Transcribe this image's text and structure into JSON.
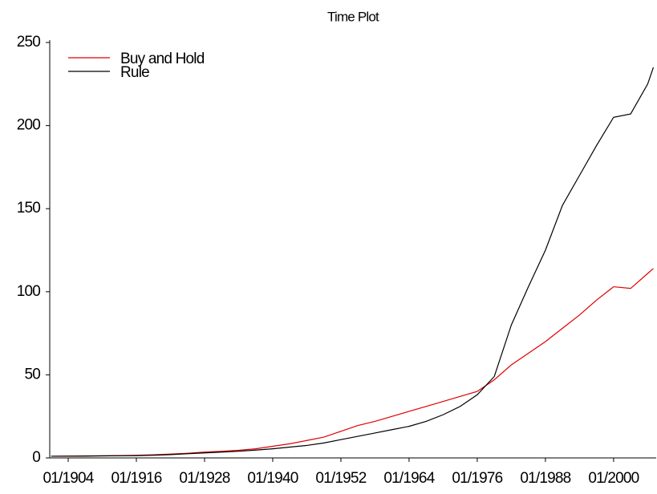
{
  "chart_data": {
    "type": "line",
    "title": "Time Plot",
    "x": [
      1901,
      1904,
      1907,
      1910,
      1913,
      1916,
      1919,
      1922,
      1925,
      1928,
      1931,
      1934,
      1937,
      1940,
      1943,
      1946,
      1949,
      1952,
      1955,
      1958,
      1961,
      1964,
      1967,
      1970,
      1973,
      1976,
      1979,
      1982,
      1985,
      1988,
      1991,
      1994,
      1997,
      2000,
      2003,
      2006,
      2007
    ],
    "series": [
      {
        "name": "Buy and Hold",
        "color": "#e00000",
        "values": [
          1,
          1.1,
          1.2,
          1.3,
          1.4,
          1.6,
          1.9,
          2.3,
          2.8,
          3.5,
          4,
          4.6,
          5.5,
          7,
          8.5,
          10.5,
          12.5,
          16,
          19.5,
          22,
          25,
          28,
          31,
          34,
          37,
          40,
          47,
          56,
          63,
          70,
          78,
          86,
          95,
          103,
          102,
          111,
          114
        ]
      },
      {
        "name": "Rule",
        "color": "#000000",
        "values": [
          1,
          1.05,
          1.1,
          1.2,
          1.3,
          1.4,
          1.6,
          2,
          2.5,
          3,
          3.5,
          4,
          4.7,
          5.5,
          6.5,
          7.5,
          9,
          11,
          13,
          15,
          17,
          19,
          22,
          26,
          31,
          38,
          49,
          80,
          103,
          125,
          152,
          170,
          188,
          205,
          207,
          225,
          235
        ]
      }
    ],
    "xlim": [
      1900.75,
      2007.5
    ],
    "xticks": [
      {
        "value": 1904,
        "label": "01/1904"
      },
      {
        "value": 1916,
        "label": "01/1916"
      },
      {
        "value": 1928,
        "label": "01/1928"
      },
      {
        "value": 1940,
        "label": "01/1940"
      },
      {
        "value": 1952,
        "label": "01/1952"
      },
      {
        "value": 1964,
        "label": "01/1964"
      },
      {
        "value": 1976,
        "label": "01/1976"
      },
      {
        "value": 1988,
        "label": "01/1988"
      },
      {
        "value": 2000,
        "label": "01/2000"
      }
    ],
    "ylim": [
      0,
      250
    ],
    "yticks": [
      0,
      50,
      100,
      150,
      200,
      250
    ],
    "legend": "upper-left"
  }
}
